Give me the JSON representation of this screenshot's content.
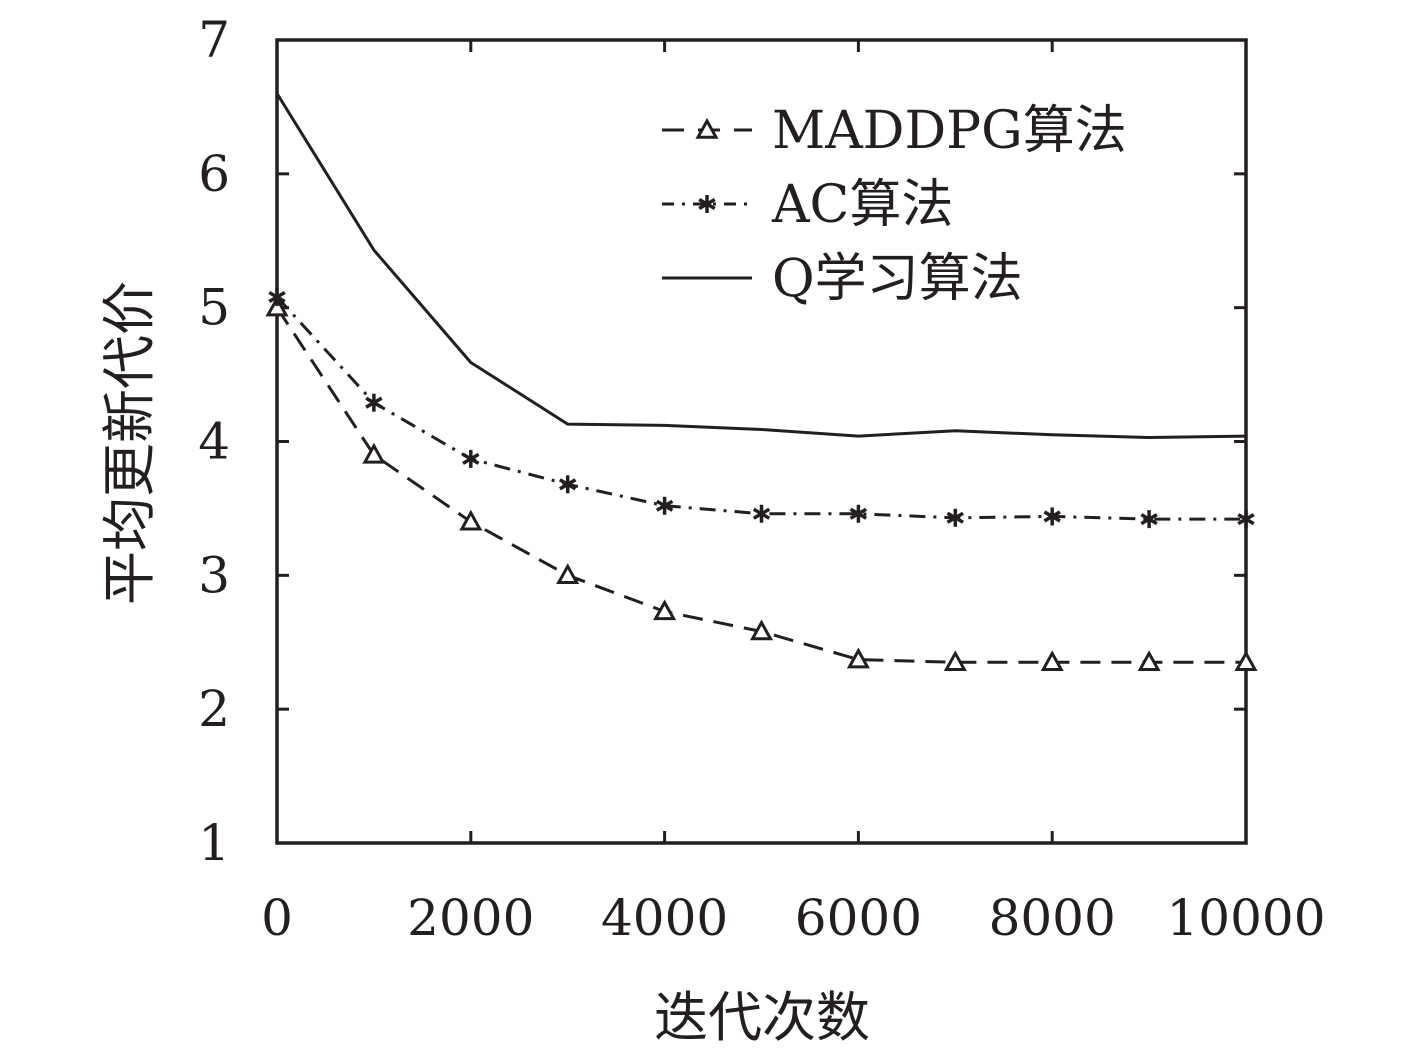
{
  "chart_data": {
    "type": "line",
    "xlabel": "迭代次数",
    "ylabel": "平均更新代价",
    "xlim": [
      0,
      10000
    ],
    "ylim": [
      1,
      7
    ],
    "xticks": [
      0,
      2000,
      4000,
      6000,
      8000,
      10000
    ],
    "yticks": [
      1,
      2,
      3,
      4,
      5,
      6,
      7
    ],
    "grid": false,
    "legend": "top-right",
    "colors": {
      "ink": "#231f20"
    },
    "series": [
      {
        "name": "MADDPG算法",
        "style": "dashed",
        "marker": "triangle",
        "x": [
          0,
          1000,
          2000,
          3000,
          4000,
          5000,
          6000,
          7000,
          8000,
          9000,
          10000
        ],
        "y": [
          5.0,
          3.9,
          3.4,
          3.0,
          2.73,
          2.58,
          2.37,
          2.35,
          2.35,
          2.35,
          2.35
        ]
      },
      {
        "name": "AC算法",
        "style": "dash-dot",
        "marker": "asterisk",
        "x": [
          0,
          1000,
          2000,
          3000,
          4000,
          5000,
          6000,
          7000,
          8000,
          9000,
          10000
        ],
        "y": [
          5.08,
          4.29,
          3.87,
          3.68,
          3.52,
          3.46,
          3.46,
          3.43,
          3.44,
          3.42,
          3.42
        ]
      },
      {
        "name": "Q学习算法",
        "style": "solid",
        "marker": "none",
        "x": [
          0,
          1000,
          2000,
          3000,
          4000,
          5000,
          6000,
          7000,
          8000,
          9000,
          10000
        ],
        "y": [
          6.6,
          5.43,
          4.59,
          4.13,
          4.12,
          4.09,
          4.04,
          4.08,
          4.05,
          4.03,
          4.04
        ]
      }
    ]
  }
}
